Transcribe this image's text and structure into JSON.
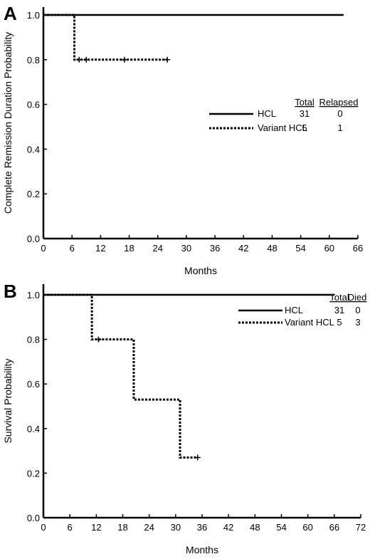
{
  "chart_data": [
    {
      "panel": "A",
      "type": "line",
      "step": true,
      "xlabel": "Months",
      "ylabel": "Complete Remission Duration Probability",
      "xlim": [
        0,
        66
      ],
      "ylim": [
        0,
        1.0
      ],
      "xticks": [
        "0",
        "6",
        "12",
        "18",
        "24",
        "30",
        "36",
        "42",
        "48",
        "54",
        "60",
        "66"
      ],
      "yticks": [
        "0.0",
        "0.2",
        "0.4",
        "0.6",
        "0.8",
        "1.0"
      ],
      "legend_headers": [
        "Total",
        "Relapsed"
      ],
      "series": [
        {
          "name": "HCL",
          "style": "solid",
          "total": "31",
          "events": "0",
          "points": [
            [
              0,
              1.0
            ],
            [
              63,
              1.0
            ]
          ],
          "censored": []
        },
        {
          "name": "Variant HCL",
          "style": "dotted",
          "total": "5",
          "events": "1",
          "points": [
            [
              0,
              1.0
            ],
            [
              6.5,
              1.0
            ],
            [
              6.5,
              0.8
            ],
            [
              26,
              0.8
            ]
          ],
          "censored": [
            [
              7.5,
              0.8
            ],
            [
              9,
              0.8
            ],
            [
              17,
              0.8
            ],
            [
              26,
              0.8
            ]
          ]
        }
      ]
    },
    {
      "panel": "B",
      "type": "line",
      "step": true,
      "xlabel": "Months",
      "ylabel": "Survival Probability",
      "xlim": [
        0,
        72
      ],
      "ylim": [
        0,
        1.0
      ],
      "xticks": [
        "0",
        "6",
        "12",
        "18",
        "24",
        "30",
        "36",
        "42",
        "48",
        "54",
        "60",
        "66",
        "72"
      ],
      "yticks": [
        "0.0",
        "0.2",
        "0.4",
        "0.6",
        "0.8",
        "1.0"
      ],
      "legend_headers": [
        "Total",
        "Died"
      ],
      "series": [
        {
          "name": "HCL",
          "style": "solid",
          "total": "31",
          "events": "0",
          "points": [
            [
              0,
              1.0
            ],
            [
              66,
              1.0
            ]
          ],
          "censored": []
        },
        {
          "name": "Variant HCL",
          "style": "dotted",
          "total": "5",
          "events": "3",
          "points": [
            [
              0,
              1.0
            ],
            [
              11,
              1.0
            ],
            [
              11,
              0.8
            ],
            [
              20.5,
              0.8
            ],
            [
              20.5,
              0.53
            ],
            [
              31,
              0.53
            ],
            [
              31,
              0.27
            ],
            [
              35,
              0.27
            ]
          ],
          "censored": [
            [
              12.5,
              0.8
            ],
            [
              35,
              0.27
            ]
          ]
        }
      ]
    }
  ]
}
